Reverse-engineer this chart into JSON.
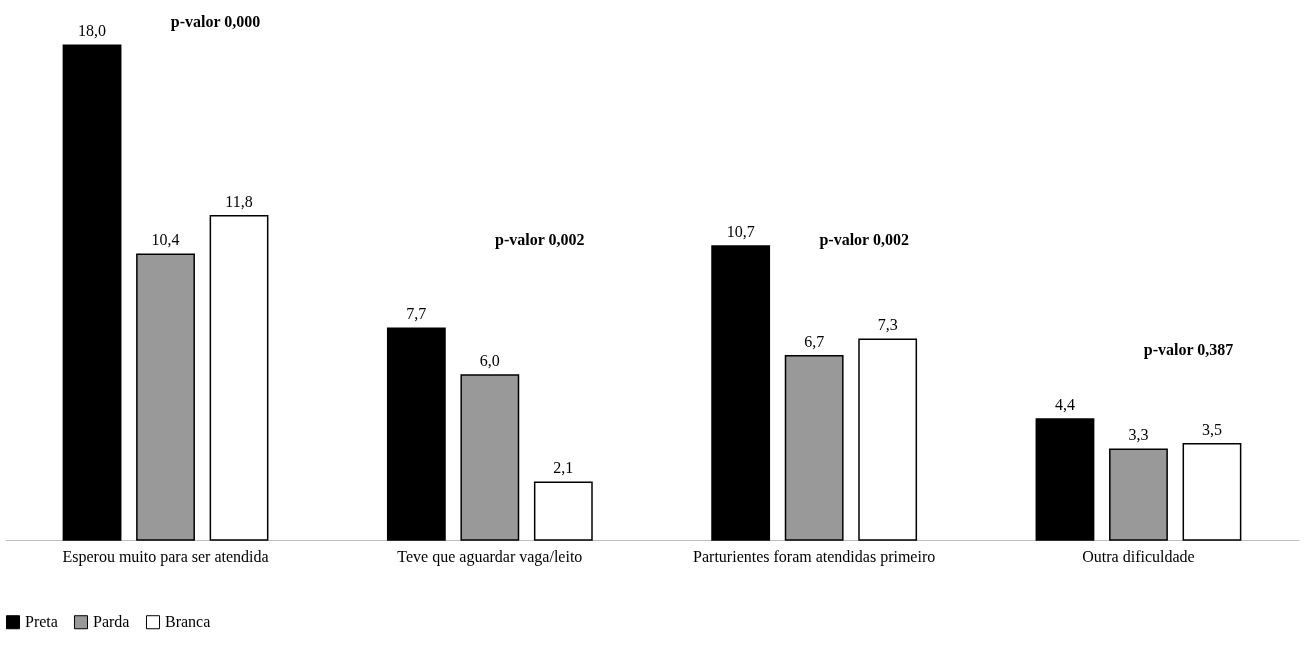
{
  "chart_data": {
    "type": "bar",
    "categories": [
      "Esperou muito para ser atendida",
      "Teve que aguardar vaga/leito",
      "Parturientes foram atendidas primeiro",
      "Outra dificuldade"
    ],
    "series": [
      {
        "name": "Preta",
        "color": "#000000",
        "values": [
          18.0,
          7.7,
          10.7,
          4.4
        ],
        "value_labels": [
          "18,0",
          "7,7",
          "10,7",
          "4,4"
        ]
      },
      {
        "name": "Parda",
        "color": "#999999",
        "values": [
          10.4,
          6.0,
          6.7,
          3.3
        ],
        "value_labels": [
          "10,4",
          "6,0",
          "6,7",
          "3,3"
        ]
      },
      {
        "name": "Branca",
        "color": "#ffffff",
        "values": [
          11.8,
          2.1,
          7.3,
          3.5
        ],
        "value_labels": [
          "11,8",
          "2,1",
          "7,3",
          "3,5"
        ]
      }
    ],
    "annotations": [
      "p-valor 0,000",
      "p-valor 0,002",
      "p-valor 0,002",
      "p-valor 0,387"
    ],
    "legend": "bottom"
  }
}
